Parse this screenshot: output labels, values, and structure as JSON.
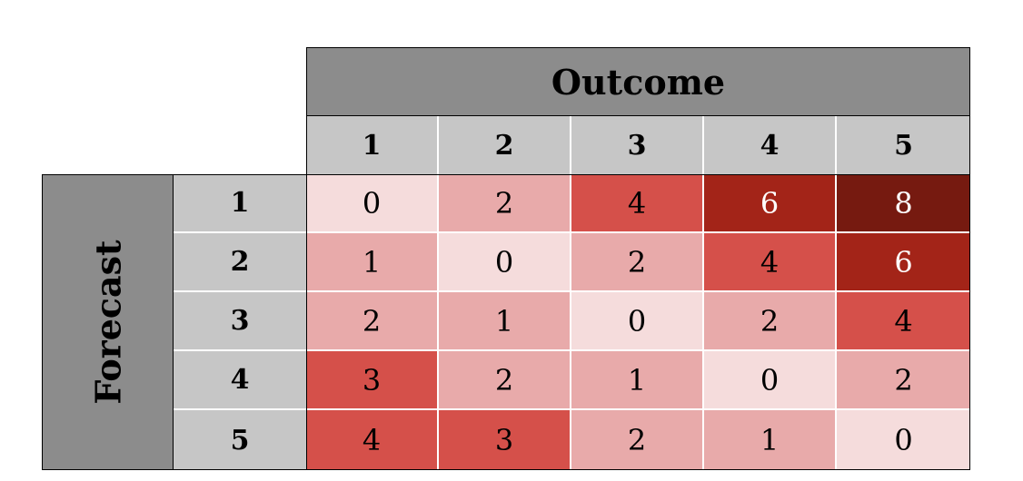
{
  "chart_data": {
    "type": "heatmap",
    "title": "",
    "xlabel": "Outcome",
    "ylabel": "Forecast",
    "x_categories": [
      "1",
      "2",
      "3",
      "4",
      "5"
    ],
    "y_categories": [
      "1",
      "2",
      "3",
      "4",
      "5"
    ],
    "values": [
      [
        0,
        2,
        4,
        6,
        8
      ],
      [
        1,
        0,
        2,
        4,
        6
      ],
      [
        2,
        1,
        0,
        2,
        4
      ],
      [
        3,
        2,
        1,
        0,
        2
      ],
      [
        4,
        3,
        2,
        1,
        0
      ]
    ],
    "colors": {
      "0": "#f5dcdc",
      "1": "#e8aaaa",
      "2": "#e8aaaa",
      "3": "#d5504a",
      "4": "#d5504a",
      "6": "#a32418",
      "8": "#761a10"
    },
    "text_colors": {
      "light": "#000000",
      "dark": "#ffffff"
    },
    "header_color": "#8c8c8c",
    "subheader_color": "#c6c6c6"
  }
}
